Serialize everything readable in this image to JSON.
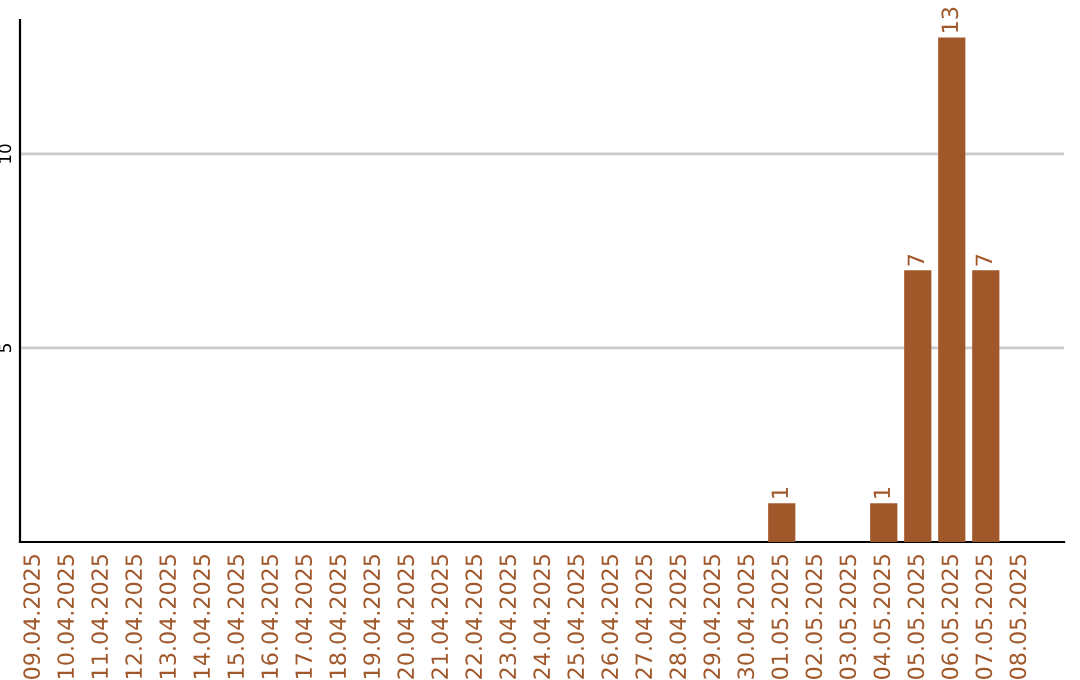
{
  "chart_data": {
    "type": "bar",
    "categories": [
      "09.04.2025",
      "10.04.2025",
      "11.04.2025",
      "12.04.2025",
      "13.04.2025",
      "14.04.2025",
      "15.04.2025",
      "16.04.2025",
      "17.04.2025",
      "18.04.2025",
      "19.04.2025",
      "20.04.2025",
      "21.04.2025",
      "22.04.2025",
      "23.04.2025",
      "24.04.2025",
      "25.04.2025",
      "26.04.2025",
      "27.04.2025",
      "28.04.2025",
      "29.04.2025",
      "30.04.2025",
      "01.05.2025",
      "02.05.2025",
      "03.05.2025",
      "04.05.2025",
      "05.05.2025",
      "06.05.2025",
      "07.05.2025",
      "08.05.2025"
    ],
    "values": [
      0,
      0,
      0,
      0,
      0,
      0,
      0,
      0,
      0,
      0,
      0,
      0,
      0,
      0,
      0,
      0,
      0,
      0,
      0,
      0,
      0,
      0,
      1,
      0,
      0,
      1,
      7,
      13,
      7,
      0
    ],
    "value_labels": [
      null,
      null,
      null,
      null,
      null,
      null,
      null,
      null,
      null,
      null,
      null,
      null,
      null,
      null,
      null,
      null,
      null,
      null,
      null,
      null,
      null,
      null,
      "1",
      null,
      null,
      "1",
      "7",
      "13",
      "7",
      null
    ],
    "color": "#a0572a",
    "ylim": [
      0,
      13.45
    ],
    "yticks": [
      5,
      10
    ],
    "grid": "y"
  }
}
